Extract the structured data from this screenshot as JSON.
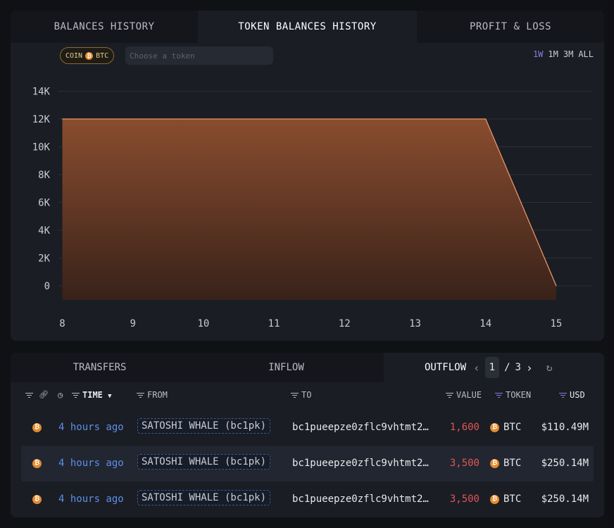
{
  "top_tabs": [
    "BALANCES HISTORY",
    "TOKEN BALANCES HISTORY",
    "PROFIT & LOSS"
  ],
  "filter": {
    "pill_prefix": "COIN",
    "pill_token": "BTC",
    "token_placeholder": "Choose a token"
  },
  "ranges": [
    "1W",
    "1M",
    "3M",
    "ALL"
  ],
  "active_range": "1W",
  "colors": {
    "accent": "#8d7be6",
    "area_stroke": "#e8956a",
    "area_fill": "#8a4a2c",
    "negative": "#e05656",
    "link": "#5b8fe6",
    "btc": "#e58a2c"
  },
  "chart_data": {
    "type": "area",
    "x": [
      8,
      9,
      10,
      11,
      12,
      13,
      14,
      15
    ],
    "values": [
      12000,
      12000,
      12000,
      12000,
      12000,
      12000,
      12000,
      0
    ],
    "y_ticks": [
      "14K",
      "12K",
      "10K",
      "8K",
      "6K",
      "4K",
      "2K",
      "0"
    ],
    "x_ticks": [
      "8",
      "9",
      "10",
      "11",
      "12",
      "13",
      "14",
      "15"
    ],
    "ylim": [
      0,
      14000
    ],
    "xlim": [
      8,
      15.5
    ],
    "grid": true
  },
  "bottom_tabs": [
    "TRANSFERS",
    "INFLOW",
    "OUTFLOW"
  ],
  "pager": {
    "current": "1",
    "sep": "/",
    "total": "3"
  },
  "columns": {
    "time": "TIME",
    "from": "FROM",
    "to": "TO",
    "value": "VALUE",
    "token": "TOKEN",
    "usd": "USD"
  },
  "rows": [
    {
      "time": "4 hours ago",
      "from": "SATOSHI WHALE (bc1pk)",
      "to": "bc1pueepze0zflc9vhtmt2…",
      "value": "1,600",
      "token": "BTC",
      "usd": "$110.49M"
    },
    {
      "time": "4 hours ago",
      "from": "SATOSHI WHALE (bc1pk)",
      "to": "bc1pueepze0zflc9vhtmt2…",
      "value": "3,500",
      "token": "BTC",
      "usd": "$250.14M"
    },
    {
      "time": "4 hours ago",
      "from": "SATOSHI WHALE (bc1pk)",
      "to": "bc1pueepze0zflc9vhtmt2…",
      "value": "3,500",
      "token": "BTC",
      "usd": "$250.14M"
    }
  ]
}
